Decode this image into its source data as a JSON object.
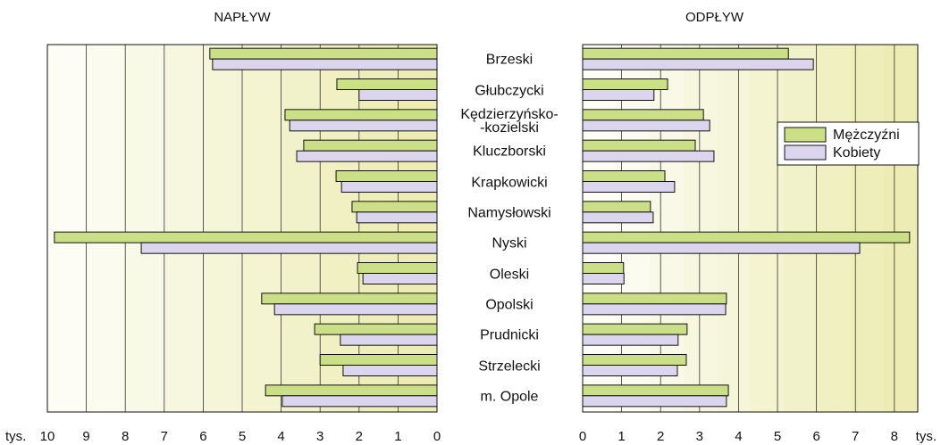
{
  "chart_data": {
    "type": "bar",
    "categories": [
      "Brzeski",
      "Głubczycki",
      "Kędzierzyńsko-\n-kozielski",
      "Kluczborski",
      "Krapkowicki",
      "Namysłowski",
      "Nyski",
      "Oleski",
      "Opolski",
      "Prudnicki",
      "Strzelecki",
      "m. Opole"
    ],
    "unit": "tys.",
    "legend": "upper right",
    "panels": [
      {
        "title": "NAPŁYW",
        "xlim": [
          10,
          0
        ],
        "xticks": [
          10,
          9,
          8,
          7,
          6,
          5,
          4,
          3,
          2,
          1,
          0
        ]
      },
      {
        "title": "ODPŁYW",
        "xlim": [
          0,
          8.6
        ],
        "xticks": [
          0,
          1,
          2,
          3,
          4,
          5,
          6,
          7,
          8
        ]
      }
    ],
    "series": [
      {
        "name": "Mężczyźni",
        "color": "#cadf86",
        "values": [
          [
            5.83,
            2.57,
            3.9,
            3.42,
            2.59,
            2.18,
            9.82,
            2.04,
            4.5,
            3.14,
            3.0,
            4.4
          ],
          [
            5.28,
            2.18,
            3.1,
            2.89,
            2.11,
            1.74,
            8.39,
            1.05,
            3.69,
            2.68,
            2.66,
            3.74
          ]
        ]
      },
      {
        "name": "Kobiety",
        "color": "#dbd6ee",
        "values": [
          [
            5.76,
            2.0,
            3.78,
            3.6,
            2.45,
            2.06,
            7.59,
            1.9,
            4.17,
            2.48,
            2.41,
            3.97
          ],
          [
            5.92,
            1.83,
            3.26,
            3.37,
            2.36,
            1.81,
            7.11,
            1.06,
            3.67,
            2.45,
            2.43,
            3.69
          ]
        ]
      }
    ]
  }
}
